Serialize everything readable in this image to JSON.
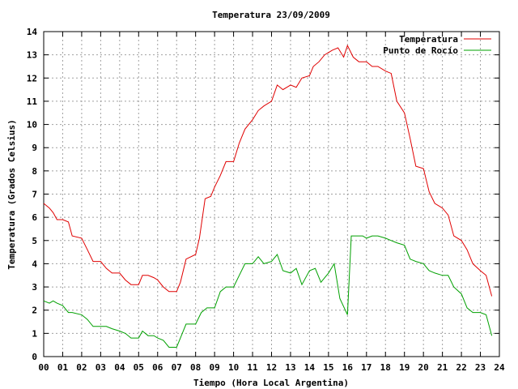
{
  "chart_data": {
    "type": "line",
    "title": "Temperatura 23/09/2009",
    "xlabel": "Tiempo (Hora Local Argentina)",
    "ylabel": "Temperatura (Grados Celsius)",
    "xlim": [
      0,
      24
    ],
    "ylim": [
      0,
      14
    ],
    "grid": true,
    "legend_position": "top-right",
    "x_ticks": [
      0,
      1,
      2,
      3,
      4,
      5,
      6,
      7,
      8,
      9,
      10,
      11,
      12,
      13,
      14,
      15,
      16,
      17,
      18,
      19,
      20,
      21,
      22,
      23,
      24
    ],
    "x_tick_labels": [
      "00",
      "01",
      "02",
      "03",
      "04",
      "05",
      "06",
      "07",
      "08",
      "09",
      "10",
      "11",
      "12",
      "13",
      "14",
      "15",
      "16",
      "17",
      "18",
      "19",
      "20",
      "21",
      "22",
      "23",
      "24"
    ],
    "y_ticks": [
      0,
      1,
      2,
      3,
      4,
      5,
      6,
      7,
      8,
      9,
      10,
      11,
      12,
      13,
      14
    ],
    "y_tick_labels": [
      "0",
      "1",
      "2",
      "3",
      "4",
      "5",
      "6",
      "7",
      "8",
      "9",
      "10",
      "11",
      "12",
      "13",
      "14"
    ],
    "series": [
      {
        "name": "Temperatura",
        "color": "#e00000",
        "x": [
          0,
          0.3,
          0.5,
          0.7,
          1.0,
          1.3,
          1.5,
          2.0,
          2.3,
          2.6,
          3.0,
          3.3,
          3.6,
          4.0,
          4.3,
          4.6,
          5.0,
          5.2,
          5.5,
          5.8,
          6.0,
          6.3,
          6.6,
          7.0,
          7.2,
          7.5,
          8.0,
          8.2,
          8.5,
          8.8,
          9.0,
          9.3,
          9.6,
          10.0,
          10.3,
          10.6,
          11.0,
          11.3,
          11.6,
          12.0,
          12.3,
          12.6,
          13.0,
          13.3,
          13.6,
          14.0,
          14.2,
          14.5,
          14.8,
          15.0,
          15.2,
          15.5,
          15.8,
          16.0,
          16.3,
          16.6,
          17.0,
          17.3,
          17.6,
          18.0,
          18.3,
          18.6,
          19.0,
          19.3,
          19.6,
          20.0,
          20.3,
          20.6,
          21.0,
          21.3,
          21.6,
          22.0,
          22.3,
          22.6,
          23.0,
          23.3,
          23.6
        ],
        "values": [
          6.6,
          6.4,
          6.2,
          5.9,
          5.9,
          5.8,
          5.2,
          5.1,
          4.6,
          4.1,
          4.1,
          3.8,
          3.6,
          3.6,
          3.3,
          3.1,
          3.1,
          3.5,
          3.5,
          3.4,
          3.3,
          3.0,
          2.8,
          2.8,
          3.2,
          4.2,
          4.4,
          5.1,
          6.8,
          6.9,
          7.3,
          7.8,
          8.4,
          8.4,
          9.2,
          9.8,
          10.2,
          10.6,
          10.8,
          11.0,
          11.7,
          11.5,
          11.7,
          11.6,
          12.0,
          12.1,
          12.5,
          12.7,
          13.0,
          13.1,
          13.2,
          13.3,
          12.9,
          13.4,
          12.9,
          12.7,
          12.7,
          12.5,
          12.5,
          12.3,
          12.2,
          11.0,
          10.5,
          9.4,
          8.2,
          8.1,
          7.1,
          6.6,
          6.4,
          6.1,
          5.2,
          5.0,
          4.6,
          4.0,
          3.7,
          3.5,
          2.6
        ]
      },
      {
        "name": "Punto de Rocío",
        "color": "#00a000",
        "x": [
          0,
          0.3,
          0.5,
          0.7,
          1.0,
          1.3,
          1.5,
          2.0,
          2.3,
          2.6,
          3.0,
          3.3,
          3.6,
          4.0,
          4.3,
          4.6,
          5.0,
          5.2,
          5.5,
          5.8,
          6.0,
          6.3,
          6.6,
          7.0,
          7.2,
          7.5,
          8.0,
          8.3,
          8.6,
          9.0,
          9.3,
          9.6,
          10.0,
          10.3,
          10.6,
          11.0,
          11.3,
          11.6,
          12.0,
          12.3,
          12.6,
          13.0,
          13.3,
          13.6,
          14.0,
          14.3,
          14.6,
          15.0,
          15.3,
          15.6,
          16.0,
          16.2,
          16.5,
          16.8,
          17.0,
          17.3,
          17.6,
          18.0,
          18.3,
          18.6,
          19.0,
          19.3,
          19.6,
          20.0,
          20.3,
          20.6,
          21.0,
          21.3,
          21.6,
          22.0,
          22.3,
          22.6,
          23.0,
          23.3,
          23.6
        ],
        "values": [
          2.4,
          2.3,
          2.4,
          2.3,
          2.2,
          1.9,
          1.9,
          1.8,
          1.6,
          1.3,
          1.3,
          1.3,
          1.2,
          1.1,
          1.0,
          0.8,
          0.8,
          1.1,
          0.9,
          0.9,
          0.8,
          0.7,
          0.4,
          0.4,
          0.8,
          1.4,
          1.4,
          1.9,
          2.1,
          2.1,
          2.8,
          3.0,
          3.0,
          3.5,
          4.0,
          4.0,
          4.3,
          4.0,
          4.1,
          4.4,
          3.7,
          3.6,
          3.8,
          3.1,
          3.7,
          3.8,
          3.2,
          3.6,
          4.0,
          2.5,
          1.8,
          5.2,
          5.2,
          5.2,
          5.1,
          5.2,
          5.2,
          5.1,
          5.0,
          4.9,
          4.8,
          4.2,
          4.1,
          4.0,
          3.7,
          3.6,
          3.5,
          3.5,
          3.0,
          2.7,
          2.1,
          1.9,
          1.9,
          1.8,
          0.9
        ]
      }
    ]
  }
}
